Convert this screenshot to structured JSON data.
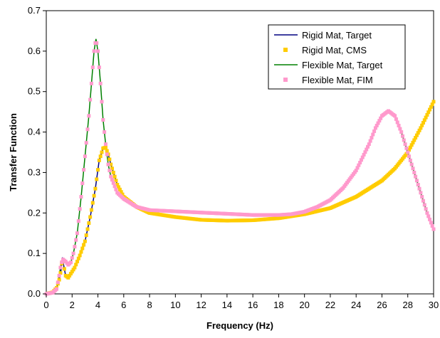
{
  "chart_data": {
    "type": "line",
    "xlabel": "Frequency (Hz)",
    "ylabel": "Transfer Function",
    "xlim": [
      0,
      30
    ],
    "ylim": [
      0,
      0.7
    ],
    "xticks": [
      "0",
      "2",
      "4",
      "6",
      "8",
      "10",
      "12",
      "14",
      "16",
      "18",
      "20",
      "22",
      "24",
      "26",
      "28",
      "30"
    ],
    "yticks": [
      "0.0",
      "0.1",
      "0.2",
      "0.3",
      "0.4",
      "0.5",
      "0.6",
      "0.7"
    ],
    "grid": false,
    "legend_position": "top-right",
    "series": [
      {
        "name": "Rigid Mat, Target",
        "style": "line",
        "color": "#000080",
        "points": [
          [
            0,
            0
          ],
          [
            0.5,
            0.004
          ],
          [
            0.8,
            0.015
          ],
          [
            1.0,
            0.035
          ],
          [
            1.15,
            0.06
          ],
          [
            1.25,
            0.09
          ],
          [
            1.35,
            0.07
          ],
          [
            1.5,
            0.045
          ],
          [
            1.7,
            0.04
          ],
          [
            1.9,
            0.05
          ],
          [
            2.2,
            0.065
          ],
          [
            2.6,
            0.095
          ],
          [
            3.0,
            0.13
          ],
          [
            3.4,
            0.19
          ],
          [
            3.8,
            0.26
          ],
          [
            4.1,
            0.33
          ],
          [
            4.4,
            0.36
          ],
          [
            4.6,
            0.362
          ],
          [
            4.8,
            0.345
          ],
          [
            5.0,
            0.32
          ],
          [
            5.5,
            0.27
          ],
          [
            6.0,
            0.24
          ],
          [
            7.0,
            0.215
          ],
          [
            8.0,
            0.2
          ],
          [
            10.0,
            0.19
          ],
          [
            12.0,
            0.183
          ],
          [
            14.0,
            0.181
          ],
          [
            16.0,
            0.182
          ],
          [
            18.0,
            0.187
          ],
          [
            20.0,
            0.197
          ],
          [
            22.0,
            0.212
          ],
          [
            24.0,
            0.24
          ],
          [
            26.0,
            0.28
          ],
          [
            27.0,
            0.31
          ],
          [
            28.0,
            0.35
          ],
          [
            29.0,
            0.41
          ],
          [
            30.0,
            0.475
          ]
        ]
      },
      {
        "name": "Rigid Mat, CMS",
        "style": "marker",
        "color": "#FFCC00",
        "points": [
          [
            0,
            0
          ],
          [
            0.5,
            0.004
          ],
          [
            0.8,
            0.015
          ],
          [
            1.0,
            0.035
          ],
          [
            1.15,
            0.06
          ],
          [
            1.25,
            0.09
          ],
          [
            1.35,
            0.07
          ],
          [
            1.5,
            0.045
          ],
          [
            1.7,
            0.04
          ],
          [
            1.9,
            0.05
          ],
          [
            2.2,
            0.065
          ],
          [
            2.6,
            0.095
          ],
          [
            3.0,
            0.13
          ],
          [
            3.4,
            0.19
          ],
          [
            3.8,
            0.26
          ],
          [
            4.1,
            0.33
          ],
          [
            4.4,
            0.36
          ],
          [
            4.6,
            0.362
          ],
          [
            4.8,
            0.345
          ],
          [
            5.0,
            0.32
          ],
          [
            5.5,
            0.27
          ],
          [
            6.0,
            0.24
          ],
          [
            7.0,
            0.215
          ],
          [
            8.0,
            0.2
          ],
          [
            10.0,
            0.19
          ],
          [
            12.0,
            0.183
          ],
          [
            14.0,
            0.181
          ],
          [
            16.0,
            0.182
          ],
          [
            18.0,
            0.187
          ],
          [
            20.0,
            0.197
          ],
          [
            22.0,
            0.212
          ],
          [
            24.0,
            0.24
          ],
          [
            26.0,
            0.28
          ],
          [
            27.0,
            0.31
          ],
          [
            28.0,
            0.35
          ],
          [
            29.0,
            0.41
          ],
          [
            30.0,
            0.475
          ]
        ]
      },
      {
        "name": "Flexible Mat, Target",
        "style": "line",
        "color": "#008000",
        "points": [
          [
            0,
            0
          ],
          [
            0.5,
            0.003
          ],
          [
            0.8,
            0.012
          ],
          [
            1.0,
            0.045
          ],
          [
            1.15,
            0.075
          ],
          [
            1.3,
            0.085
          ],
          [
            1.5,
            0.08
          ],
          [
            1.7,
            0.072
          ],
          [
            1.9,
            0.078
          ],
          [
            2.1,
            0.1
          ],
          [
            2.4,
            0.15
          ],
          [
            2.7,
            0.24
          ],
          [
            3.0,
            0.34
          ],
          [
            3.3,
            0.44
          ],
          [
            3.5,
            0.52
          ],
          [
            3.7,
            0.6
          ],
          [
            3.85,
            0.63
          ],
          [
            4.0,
            0.6
          ],
          [
            4.2,
            0.52
          ],
          [
            4.4,
            0.43
          ],
          [
            4.6,
            0.37
          ],
          [
            4.8,
            0.32
          ],
          [
            5.0,
            0.29
          ],
          [
            5.5,
            0.25
          ],
          [
            6.0,
            0.235
          ],
          [
            7.0,
            0.215
          ],
          [
            8.0,
            0.207
          ],
          [
            10.0,
            0.204
          ],
          [
            12.0,
            0.201
          ],
          [
            14.0,
            0.198
          ],
          [
            16.0,
            0.195
          ],
          [
            18.0,
            0.195
          ],
          [
            19.0,
            0.197
          ],
          [
            20.0,
            0.203
          ],
          [
            21.0,
            0.215
          ],
          [
            22.0,
            0.232
          ],
          [
            23.0,
            0.262
          ],
          [
            24.0,
            0.305
          ],
          [
            25.0,
            0.37
          ],
          [
            25.5,
            0.41
          ],
          [
            26.0,
            0.44
          ],
          [
            26.5,
            0.452
          ],
          [
            27.0,
            0.44
          ],
          [
            27.5,
            0.4
          ],
          [
            28.0,
            0.35
          ],
          [
            28.5,
            0.3
          ],
          [
            29.0,
            0.25
          ],
          [
            29.5,
            0.2
          ],
          [
            30.0,
            0.16
          ]
        ]
      },
      {
        "name": "Flexible Mat, FIM",
        "style": "marker",
        "color": "#FF99CC",
        "points": [
          [
            0,
            0
          ],
          [
            0.5,
            0.003
          ],
          [
            0.8,
            0.012
          ],
          [
            1.0,
            0.045
          ],
          [
            1.15,
            0.075
          ],
          [
            1.3,
            0.085
          ],
          [
            1.5,
            0.08
          ],
          [
            1.7,
            0.072
          ],
          [
            1.9,
            0.078
          ],
          [
            2.1,
            0.1
          ],
          [
            2.4,
            0.15
          ],
          [
            2.7,
            0.24
          ],
          [
            3.0,
            0.34
          ],
          [
            3.3,
            0.44
          ],
          [
            3.5,
            0.52
          ],
          [
            3.7,
            0.6
          ],
          [
            3.85,
            0.63
          ],
          [
            4.0,
            0.6
          ],
          [
            4.2,
            0.52
          ],
          [
            4.4,
            0.43
          ],
          [
            4.6,
            0.37
          ],
          [
            4.8,
            0.32
          ],
          [
            5.0,
            0.29
          ],
          [
            5.5,
            0.25
          ],
          [
            6.0,
            0.235
          ],
          [
            7.0,
            0.215
          ],
          [
            8.0,
            0.207
          ],
          [
            10.0,
            0.204
          ],
          [
            12.0,
            0.201
          ],
          [
            14.0,
            0.198
          ],
          [
            16.0,
            0.195
          ],
          [
            18.0,
            0.195
          ],
          [
            19.0,
            0.197
          ],
          [
            20.0,
            0.203
          ],
          [
            21.0,
            0.215
          ],
          [
            22.0,
            0.232
          ],
          [
            23.0,
            0.262
          ],
          [
            24.0,
            0.305
          ],
          [
            25.0,
            0.37
          ],
          [
            25.5,
            0.41
          ],
          [
            26.0,
            0.44
          ],
          [
            26.5,
            0.452
          ],
          [
            27.0,
            0.44
          ],
          [
            27.5,
            0.4
          ],
          [
            28.0,
            0.35
          ],
          [
            28.5,
            0.3
          ],
          [
            29.0,
            0.25
          ],
          [
            29.5,
            0.2
          ],
          [
            30.0,
            0.16
          ]
        ]
      }
    ]
  }
}
